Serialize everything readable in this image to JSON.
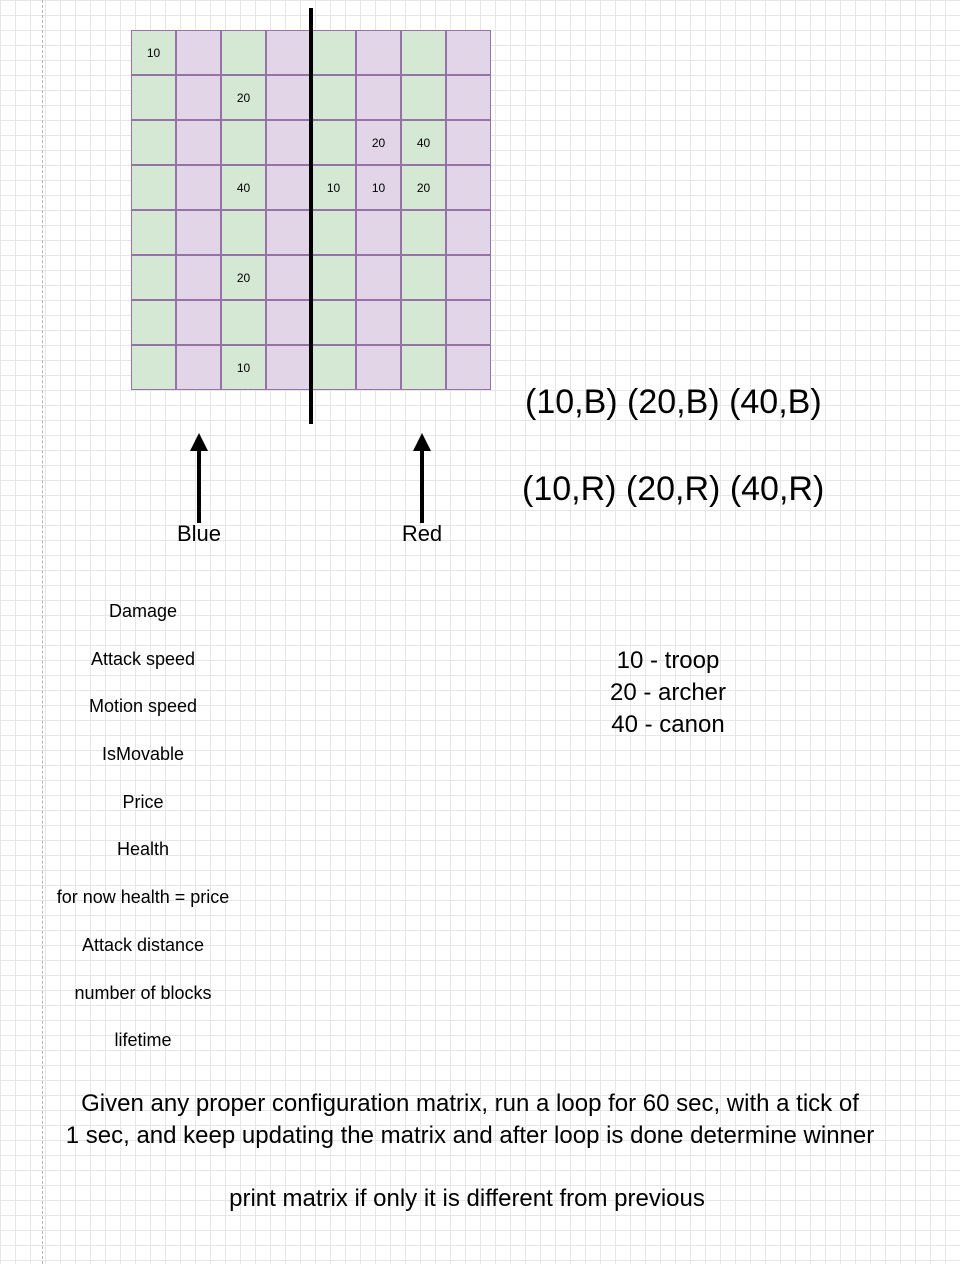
{
  "board": {
    "rows": [
      [
        "10",
        "",
        "",
        "",
        "",
        "",
        "",
        ""
      ],
      [
        "",
        "",
        "20",
        "",
        "",
        "",
        "",
        ""
      ],
      [
        "",
        "",
        "",
        "",
        "",
        "20",
        "40",
        ""
      ],
      [
        "",
        "",
        "40",
        "",
        "10",
        "10",
        "20",
        ""
      ],
      [
        "",
        "",
        "",
        "",
        "",
        "",
        "",
        ""
      ],
      [
        "",
        "",
        "20",
        "",
        "",
        "",
        "",
        ""
      ],
      [
        "",
        "",
        "",
        "",
        "",
        "",
        "",
        ""
      ],
      [
        "",
        "",
        "10",
        "",
        "",
        "",
        "",
        ""
      ]
    ],
    "column_colors": [
      "#d5e8d4",
      "#e1d5e7",
      "#d5e8d4",
      "#e1d5e7",
      "#d5e8d4",
      "#e1d5e7",
      "#d5e8d4",
      "#e1d5e7"
    ]
  },
  "lanes": {
    "blue_label": "Blue",
    "red_label": "Red"
  },
  "pairs": {
    "blue_line": "(10,B) (20,B) (40,B)",
    "red_line": "(10,R) (20,R) (40,R)"
  },
  "properties": [
    "Damage",
    "Attack speed",
    "Motion speed",
    "IsMovable",
    "Price",
    "Health",
    "for now health = price",
    "Attack distance",
    "number of blocks",
    "lifetime"
  ],
  "legend": [
    "10 - troop",
    "20 - archer",
    "40 - canon"
  ],
  "task_text": [
    "Given any proper configuration matrix, run a loop for 60 sec, with a tick of",
    "1 sec, and keep updating the matrix and after loop is done determine winner"
  ],
  "note_text": "print matrix if only it is different from previous"
}
